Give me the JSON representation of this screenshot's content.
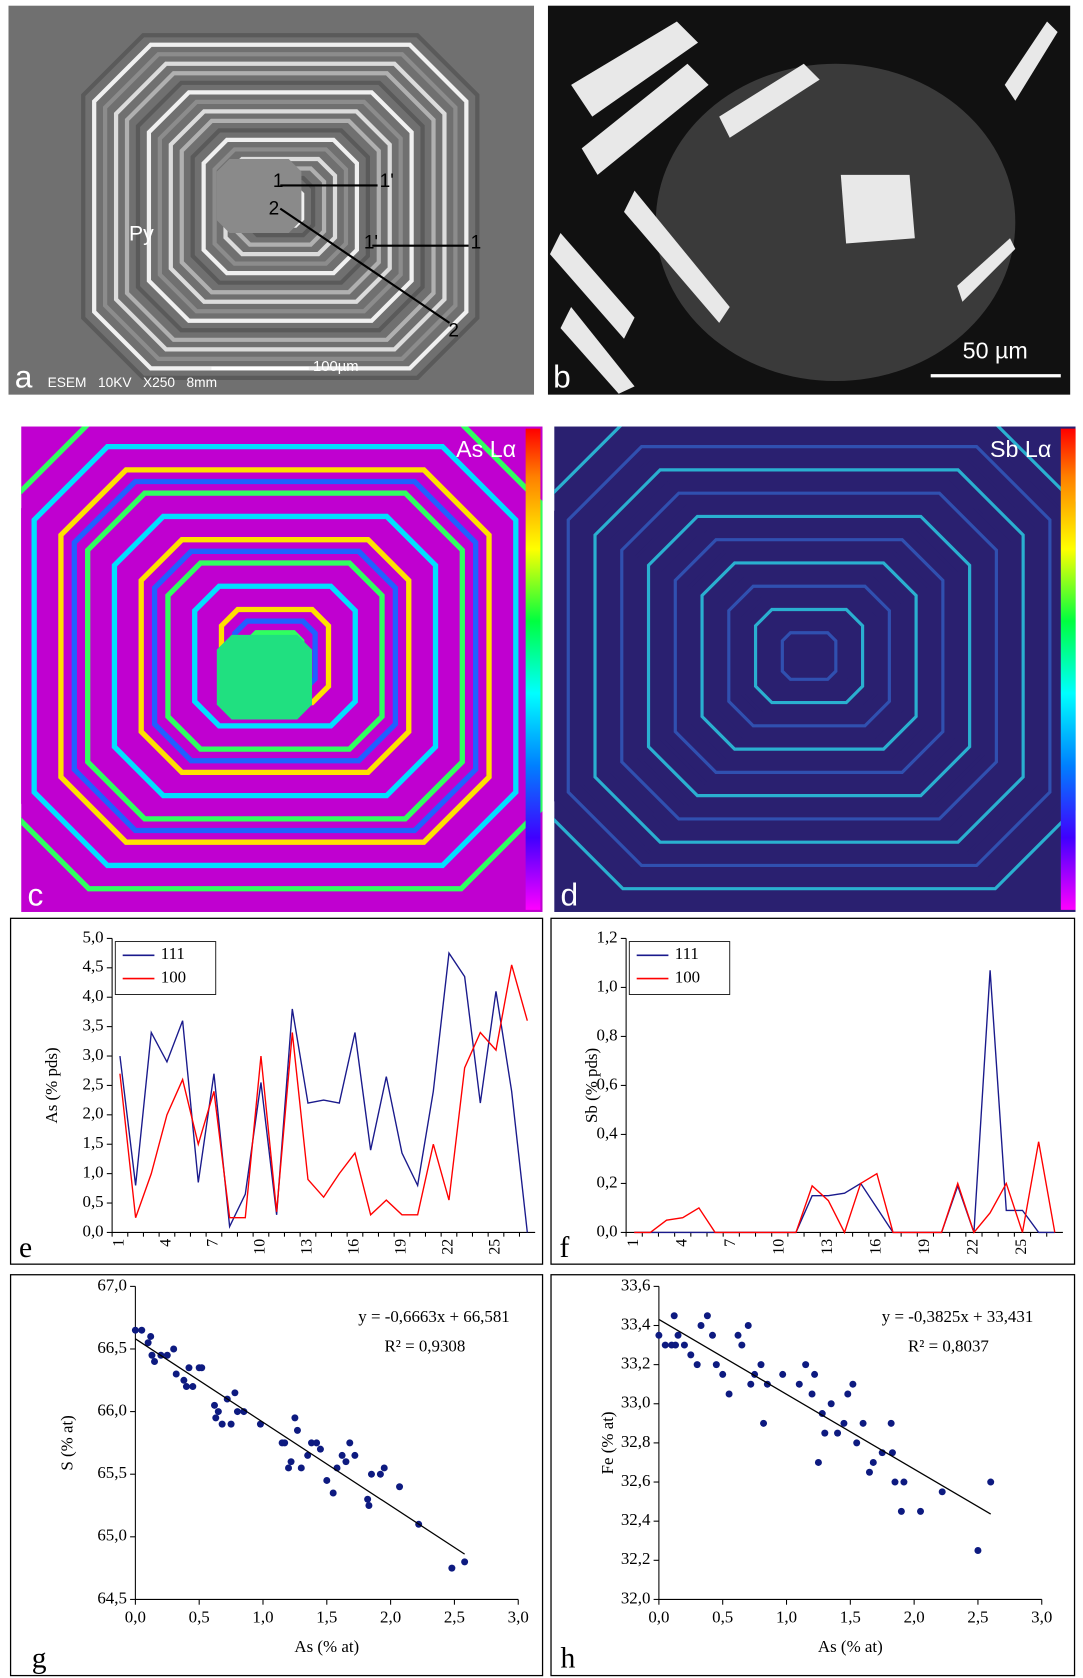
{
  "panels": {
    "a": {
      "label": "a",
      "mineral": "Py",
      "profile_labels": [
        "1",
        "1'",
        "2",
        "1'",
        "1",
        "2"
      ],
      "scale": "100µm",
      "info": "ESEM   10KV   X250   8mm"
    },
    "b": {
      "label": "b",
      "scale": "50 µm"
    },
    "c": {
      "label": "c",
      "element": "As Lα"
    },
    "d": {
      "label": "d",
      "element": "Sb Lα"
    }
  },
  "chart_data": [
    {
      "type": "line",
      "panel_label": "e",
      "y_label": "As (% pds)",
      "categories": [
        "1",
        null,
        null,
        "4",
        null,
        null,
        "7",
        null,
        null,
        "10",
        null,
        null,
        "13",
        null,
        null,
        "16",
        null,
        null,
        "19",
        null,
        null,
        "22",
        null,
        null,
        "25",
        null,
        null
      ],
      "series": [
        {
          "name": "111",
          "color": "#1a1a8c",
          "values": [
            3.0,
            0.8,
            3.4,
            2.9,
            3.6,
            0.85,
            2.7,
            0.1,
            0.65,
            2.55,
            0.3,
            3.8,
            2.2,
            2.25,
            2.2,
            3.4,
            1.4,
            2.65,
            1.35,
            0.8,
            2.4,
            4.75,
            4.35,
            2.2,
            4.1,
            2.4,
            0.0
          ]
        },
        {
          "name": "100",
          "color": "#ff0000",
          "values": [
            2.7,
            0.25,
            1.0,
            2.0,
            2.6,
            1.5,
            2.4,
            0.25,
            0.25,
            3.0,
            0.35,
            3.4,
            0.9,
            0.6,
            1.0,
            1.35,
            0.3,
            0.55,
            0.3,
            0.3,
            1.5,
            0.55,
            2.8,
            3.4,
            3.1,
            4.55,
            3.6
          ]
        }
      ],
      "ylim": [
        0,
        5
      ],
      "yticks": [
        {
          "value": 0,
          "label": "0,0"
        },
        {
          "value": 0.5,
          "label": "0,5"
        },
        {
          "value": 1,
          "label": "1,0"
        },
        {
          "value": 1.5,
          "label": "1,5"
        },
        {
          "value": 2,
          "label": "2,0"
        },
        {
          "value": 2.5,
          "label": "2,5"
        },
        {
          "value": 3,
          "label": "3,0"
        },
        {
          "value": 3.5,
          "label": "3,5"
        },
        {
          "value": 4,
          "label": "4,0"
        },
        {
          "value": 4.5,
          "label": "4,5"
        },
        {
          "value": 5,
          "label": "5,0"
        }
      ]
    },
    {
      "type": "line",
      "panel_label": "f",
      "y_label": "Sb (% pds)",
      "categories": [
        "1",
        null,
        null,
        "4",
        null,
        null,
        "7",
        null,
        null,
        "10",
        null,
        null,
        "13",
        null,
        null,
        "16",
        null,
        null,
        "19",
        null,
        null,
        "22",
        null,
        null,
        "25",
        null,
        null
      ],
      "series": [
        {
          "name": "111",
          "color": "#1a1a8c",
          "values": [
            0,
            0,
            0,
            0,
            0,
            0,
            0,
            0,
            0,
            0,
            0,
            0.15,
            0.15,
            0.16,
            0.2,
            0.1,
            0,
            0,
            0,
            0,
            0.19,
            0,
            1.07,
            0.09,
            0.09,
            0,
            0
          ]
        },
        {
          "name": "100",
          "color": "#ff0000",
          "values": [
            0,
            0,
            0.05,
            0.06,
            0.1,
            0,
            0,
            0,
            0,
            0,
            0,
            0.19,
            0.13,
            0,
            0.2,
            0.24,
            0,
            0,
            0,
            0,
            0.2,
            0,
            0.08,
            0.2,
            0,
            0.37,
            0
          ]
        }
      ],
      "ylim": [
        0,
        1.2
      ],
      "yticks": [
        {
          "value": 0,
          "label": "0,0"
        },
        {
          "value": 0.2,
          "label": "0,2"
        },
        {
          "value": 0.4,
          "label": "0,4"
        },
        {
          "value": 0.6,
          "label": "0,6"
        },
        {
          "value": 0.8,
          "label": "0,8"
        },
        {
          "value": 1,
          "label": "1,0"
        },
        {
          "value": 1.2,
          "label": "1,2"
        }
      ]
    },
    {
      "type": "scatter",
      "panel_label": "g",
      "y_label": "S (% at)",
      "x_label": "As (% at)",
      "color": "#0d1a80",
      "x": [
        0,
        0.05,
        0.1,
        0.12,
        0.13,
        0.15,
        0.2,
        0.25,
        0.3,
        0.32,
        0.38,
        0.4,
        0.42,
        0.45,
        0.5,
        0.52,
        0.62,
        0.63,
        0.65,
        0.68,
        0.72,
        0.75,
        0.78,
        0.8,
        0.85,
        0.98,
        1.15,
        1.17,
        1.2,
        1.22,
        1.25,
        1.27,
        1.3,
        1.35,
        1.38,
        1.42,
        1.45,
        1.5,
        1.55,
        1.58,
        1.62,
        1.65,
        1.68,
        1.72,
        1.82,
        1.83,
        1.85,
        1.92,
        1.95,
        2.07,
        2.22,
        2.48,
        2.58
      ],
      "values": [
        66.65,
        66.65,
        66.55,
        66.6,
        66.45,
        66.4,
        66.45,
        66.45,
        66.5,
        66.3,
        66.25,
        66.2,
        66.35,
        66.2,
        66.35,
        66.35,
        66.05,
        65.95,
        66.0,
        65.9,
        66.1,
        65.9,
        66.15,
        66.0,
        66.0,
        65.9,
        65.75,
        65.75,
        65.55,
        65.6,
        65.95,
        65.85,
        65.55,
        65.65,
        65.75,
        65.75,
        65.7,
        65.45,
        65.35,
        65.55,
        65.65,
        65.6,
        65.75,
        65.65,
        65.3,
        65.25,
        65.5,
        65.5,
        65.55,
        65.4,
        65.1,
        64.75,
        64.8
      ],
      "trendline": {
        "slope": -0.6663,
        "intercept": 66.581,
        "label": "y = -0,6663x + 66,581",
        "r2": 0.9308,
        "r2_label": "R² = 0,9308"
      },
      "xlim": [
        0,
        3
      ],
      "ylim": [
        64.5,
        67
      ],
      "xticks": [
        {
          "value": 0,
          "label": "0,0"
        },
        {
          "value": 0.5,
          "label": "0,5"
        },
        {
          "value": 1,
          "label": "1,0"
        },
        {
          "value": 1.5,
          "label": "1,5"
        },
        {
          "value": 2,
          "label": "2,0"
        },
        {
          "value": 2.5,
          "label": "2,5"
        },
        {
          "value": 3,
          "label": "3,0"
        }
      ],
      "yticks": [
        {
          "value": 64.5,
          "label": "64,5"
        },
        {
          "value": 65,
          "label": "65,0"
        },
        {
          "value": 65.5,
          "label": "65,5"
        },
        {
          "value": 66,
          "label": "66,0"
        },
        {
          "value": 66.5,
          "label": "66,5"
        },
        {
          "value": 67,
          "label": "67,0"
        }
      ]
    },
    {
      "type": "scatter",
      "panel_label": "h",
      "y_label": "Fe (% at)",
      "x_label": "As (% at)",
      "color": "#0d1a80",
      "x": [
        0,
        0.05,
        0.1,
        0.12,
        0.13,
        0.15,
        0.2,
        0.25,
        0.3,
        0.33,
        0.38,
        0.42,
        0.45,
        0.5,
        0.55,
        0.62,
        0.65,
        0.7,
        0.72,
        0.75,
        0.8,
        0.82,
        0.85,
        0.97,
        1.1,
        1.15,
        1.2,
        1.22,
        1.25,
        1.28,
        1.3,
        1.35,
        1.4,
        1.45,
        1.48,
        1.52,
        1.55,
        1.6,
        1.65,
        1.68,
        1.75,
        1.82,
        1.83,
        1.85,
        1.9,
        1.92,
        2.05,
        2.22,
        2.5,
        2.6
      ],
      "values": [
        33.35,
        33.3,
        33.3,
        33.45,
        33.3,
        33.35,
        33.3,
        33.25,
        33.2,
        33.4,
        33.45,
        33.35,
        33.2,
        33.15,
        33.05,
        33.35,
        33.3,
        33.4,
        33.1,
        33.15,
        33.2,
        32.9,
        33.1,
        33.15,
        33.1,
        33.2,
        33.05,
        33.15,
        32.7,
        32.95,
        32.85,
        33.0,
        32.85,
        32.9,
        33.05,
        33.1,
        32.8,
        32.9,
        32.65,
        32.7,
        32.75,
        32.9,
        32.75,
        32.6,
        32.45,
        32.6,
        32.45,
        32.55,
        32.25,
        32.6
      ],
      "trendline": {
        "slope": -0.3825,
        "intercept": 33.431,
        "label": "y = -0,3825x + 33,431",
        "r2": 0.8037,
        "r2_label": "R² = 0,8037"
      },
      "xlim": [
        0,
        3
      ],
      "ylim": [
        32,
        33.6
      ],
      "xticks": [
        {
          "value": 0,
          "label": "0,0"
        },
        {
          "value": 0.5,
          "label": "0,5"
        },
        {
          "value": 1,
          "label": "1,0"
        },
        {
          "value": 1.5,
          "label": "1,5"
        },
        {
          "value": 2,
          "label": "2,0"
        },
        {
          "value": 2.5,
          "label": "2,5"
        },
        {
          "value": 3,
          "label": "3,0"
        }
      ],
      "yticks": [
        {
          "value": 32,
          "label": "32,0"
        },
        {
          "value": 32.2,
          "label": "32,2"
        },
        {
          "value": 32.4,
          "label": "32,4"
        },
        {
          "value": 32.6,
          "label": "32,6"
        },
        {
          "value": 32.8,
          "label": "32,8"
        },
        {
          "value": 33,
          "label": "33,0"
        },
        {
          "value": 33.2,
          "label": "33,2"
        },
        {
          "value": 33.4,
          "label": "33,4"
        },
        {
          "value": 33.6,
          "label": "33,6"
        }
      ]
    }
  ]
}
